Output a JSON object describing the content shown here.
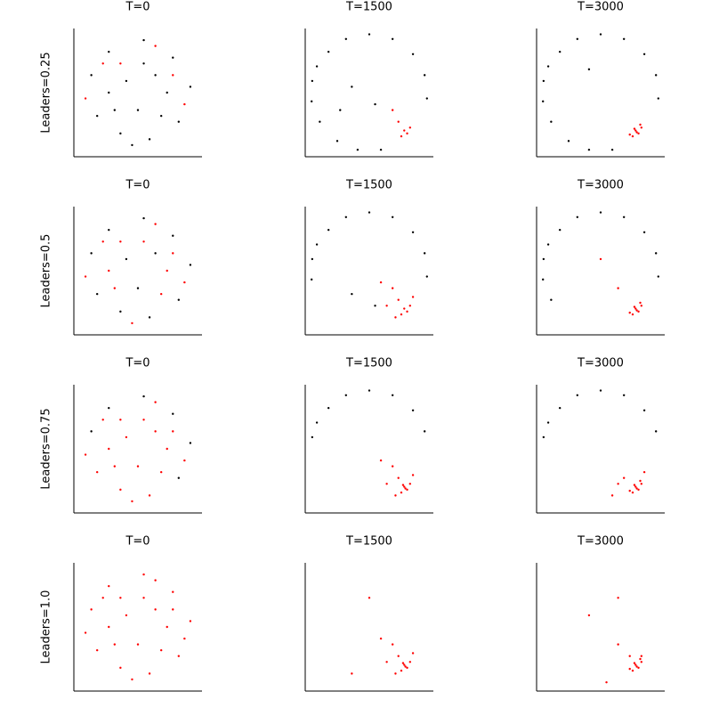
{
  "chart_data": [
    {
      "type": "scatter",
      "title": "T=0",
      "ylabel": "Leaders=0.25",
      "xlim": [
        -1.1,
        1.1
      ],
      "ylim": [
        -1.1,
        1.1
      ],
      "series": [
        {
          "color": "#000000",
          "x": [
            -0.8,
            -0.5,
            0.1,
            0.6,
            0.9,
            0.7,
            0.2,
            -0.3,
            -0.7,
            -0.2,
            0.3,
            0.0,
            -0.5,
            0.5,
            0.1,
            -0.4,
            0.4,
            -0.1
          ],
          "y": [
            0.3,
            0.7,
            0.9,
            0.6,
            0.1,
            -0.5,
            -0.8,
            -0.7,
            -0.4,
            0.2,
            0.3,
            -0.3,
            0.0,
            0.0,
            0.5,
            -0.3,
            -0.4,
            -0.9
          ]
        },
        {
          "color": "#ff0000",
          "x": [
            -0.9,
            0.8,
            -0.6,
            0.3,
            -0.3,
            0.6
          ],
          "y": [
            -0.1,
            -0.2,
            0.5,
            0.8,
            0.5,
            0.3
          ]
        }
      ]
    },
    {
      "type": "scatter",
      "title": "T=1500",
      "xlim": [
        -1.1,
        1.1
      ],
      "ylim": [
        -1.1,
        1.1
      ],
      "series": [
        {
          "color": "#000000",
          "x": [
            -0.98,
            -0.9,
            -0.7,
            -0.4,
            0.0,
            0.4,
            0.75,
            0.95,
            0.99,
            -0.99,
            -0.85,
            -0.55,
            -0.2,
            0.2,
            -0.3,
            0.1,
            -0.5
          ],
          "y": [
            0.2,
            0.45,
            0.7,
            0.92,
            1.0,
            0.92,
            0.66,
            0.3,
            -0.1,
            -0.15,
            -0.5,
            -0.83,
            -0.98,
            -0.98,
            0.1,
            -0.2,
            -0.3
          ]
        },
        {
          "color": "#ff0000",
          "x": [
            0.6,
            0.65,
            0.55,
            0.7,
            0.5,
            0.4
          ],
          "y": [
            -0.65,
            -0.7,
            -0.75,
            -0.6,
            -0.5,
            -0.3
          ]
        }
      ]
    },
    {
      "type": "scatter",
      "title": "T=3000",
      "xlim": [
        -1.1,
        1.1
      ],
      "ylim": [
        -1.1,
        1.1
      ],
      "series": [
        {
          "color": "#000000",
          "x": [
            -0.98,
            -0.9,
            -0.7,
            -0.4,
            0.0,
            0.4,
            0.75,
            0.95,
            0.99,
            -0.99,
            -0.85,
            -0.55,
            -0.2,
            0.2,
            -0.2
          ],
          "y": [
            0.2,
            0.45,
            0.7,
            0.92,
            1.0,
            0.92,
            0.66,
            0.3,
            -0.1,
            -0.15,
            -0.5,
            -0.83,
            -0.98,
            -0.98,
            0.4
          ]
        },
        {
          "color": "#ff0000",
          "x": [
            0.6,
            0.65,
            0.55,
            0.7,
            0.62,
            0.58,
            0.68,
            0.5
          ],
          "y": [
            -0.65,
            -0.7,
            -0.75,
            -0.6,
            -0.68,
            -0.62,
            -0.55,
            -0.72
          ]
        }
      ]
    },
    {
      "type": "scatter",
      "title": "T=0",
      "ylabel": "Leaders=0.5",
      "xlim": [
        -1.1,
        1.1
      ],
      "ylim": [
        -1.1,
        1.1
      ],
      "series": [
        {
          "color": "#000000",
          "x": [
            -0.8,
            -0.5,
            0.1,
            0.6,
            0.9,
            0.7,
            0.2,
            -0.3,
            -0.7,
            -0.2,
            0.3,
            0.0
          ],
          "y": [
            0.3,
            0.7,
            0.9,
            0.6,
            0.1,
            -0.5,
            -0.8,
            -0.7,
            -0.4,
            0.2,
            0.3,
            -0.3
          ]
        },
        {
          "color": "#ff0000",
          "x": [
            -0.5,
            0.5,
            0.1,
            -0.4,
            0.4,
            -0.1,
            -0.9,
            0.8,
            -0.6,
            0.3,
            -0.3,
            0.6
          ],
          "y": [
            0.0,
            0.0,
            0.5,
            -0.3,
            -0.4,
            -0.9,
            -0.1,
            -0.2,
            0.5,
            0.8,
            0.5,
            0.3
          ]
        }
      ]
    },
    {
      "type": "scatter",
      "title": "T=1500",
      "xlim": [
        -1.1,
        1.1
      ],
      "ylim": [
        -1.1,
        1.1
      ],
      "series": [
        {
          "color": "#000000",
          "x": [
            -0.98,
            -0.9,
            -0.7,
            -0.4,
            0.0,
            0.4,
            0.75,
            0.95,
            0.99,
            -0.99,
            -0.3,
            0.1
          ],
          "y": [
            0.2,
            0.45,
            0.7,
            0.92,
            1.0,
            0.92,
            0.66,
            0.3,
            -0.1,
            -0.15,
            -0.4,
            -0.6
          ]
        },
        {
          "color": "#ff0000",
          "x": [
            0.6,
            0.65,
            0.55,
            0.7,
            0.5,
            0.4,
            0.3,
            0.75,
            0.2,
            0.45
          ],
          "y": [
            -0.65,
            -0.7,
            -0.75,
            -0.6,
            -0.5,
            -0.3,
            -0.6,
            -0.45,
            -0.2,
            -0.8
          ]
        }
      ]
    },
    {
      "type": "scatter",
      "title": "T=3000",
      "xlim": [
        -1.1,
        1.1
      ],
      "ylim": [
        -1.1,
        1.1
      ],
      "series": [
        {
          "color": "#000000",
          "x": [
            -0.98,
            -0.9,
            -0.7,
            -0.4,
            0.0,
            0.4,
            0.75,
            0.95,
            0.99,
            -0.99,
            -0.85
          ],
          "y": [
            0.2,
            0.45,
            0.7,
            0.92,
            1.0,
            0.92,
            0.66,
            0.3,
            -0.1,
            -0.15,
            -0.5
          ]
        },
        {
          "color": "#ff0000",
          "x": [
            0.6,
            0.65,
            0.55,
            0.7,
            0.62,
            0.58,
            0.68,
            0.5,
            0.3,
            0.0
          ],
          "y": [
            -0.65,
            -0.7,
            -0.75,
            -0.6,
            -0.68,
            -0.62,
            -0.55,
            -0.72,
            -0.3,
            0.2
          ]
        }
      ]
    },
    {
      "type": "scatter",
      "title": "T=0",
      "ylabel": "Leaders=0.75",
      "xlim": [
        -1.1,
        1.1
      ],
      "ylim": [
        -1.1,
        1.1
      ],
      "series": [
        {
          "color": "#000000",
          "x": [
            -0.8,
            -0.5,
            0.1,
            0.6,
            0.9,
            0.7
          ],
          "y": [
            0.3,
            0.7,
            0.9,
            0.6,
            0.1,
            -0.5
          ]
        },
        {
          "color": "#ff0000",
          "x": [
            0.2,
            -0.3,
            -0.7,
            -0.2,
            0.3,
            0.0,
            -0.5,
            0.5,
            0.1,
            -0.4,
            0.4,
            -0.1,
            -0.9,
            0.8,
            -0.6,
            0.3,
            -0.3,
            0.6
          ],
          "y": [
            -0.8,
            -0.7,
            -0.4,
            0.2,
            0.3,
            -0.3,
            0.0,
            0.0,
            0.5,
            -0.3,
            -0.4,
            -0.9,
            -0.1,
            -0.2,
            0.5,
            0.8,
            0.5,
            0.3
          ]
        }
      ]
    },
    {
      "type": "scatter",
      "title": "T=1500",
      "xlim": [
        -1.1,
        1.1
      ],
      "ylim": [
        -1.1,
        1.1
      ],
      "series": [
        {
          "color": "#000000",
          "x": [
            -0.98,
            -0.9,
            -0.7,
            -0.4,
            0.0,
            0.4,
            0.75,
            0.95
          ],
          "y": [
            0.2,
            0.45,
            0.7,
            0.92,
            1.0,
            0.92,
            0.66,
            0.3
          ]
        },
        {
          "color": "#ff0000",
          "x": [
            0.6,
            0.65,
            0.55,
            0.7,
            0.5,
            0.4,
            0.3,
            0.75,
            0.2,
            0.45,
            0.62,
            0.58
          ],
          "y": [
            -0.65,
            -0.7,
            -0.75,
            -0.6,
            -0.5,
            -0.3,
            -0.6,
            -0.45,
            -0.2,
            -0.8,
            -0.68,
            -0.62
          ]
        }
      ]
    },
    {
      "type": "scatter",
      "title": "T=3000",
      "xlim": [
        -1.1,
        1.1
      ],
      "ylim": [
        -1.1,
        1.1
      ],
      "series": [
        {
          "color": "#000000",
          "x": [
            -0.98,
            -0.9,
            -0.7,
            -0.4,
            0.0,
            0.4,
            0.75,
            0.95
          ],
          "y": [
            0.2,
            0.45,
            0.7,
            0.92,
            1.0,
            0.92,
            0.66,
            0.3
          ]
        },
        {
          "color": "#ff0000",
          "x": [
            0.6,
            0.65,
            0.55,
            0.7,
            0.62,
            0.58,
            0.68,
            0.5,
            0.4,
            0.2,
            0.75,
            0.3
          ],
          "y": [
            -0.65,
            -0.7,
            -0.75,
            -0.6,
            -0.68,
            -0.62,
            -0.55,
            -0.72,
            -0.5,
            -0.8,
            -0.4,
            -0.6
          ]
        }
      ]
    },
    {
      "type": "scatter",
      "title": "T=0",
      "ylabel": "Leaders=1.0",
      "xlim": [
        -1.1,
        1.1
      ],
      "ylim": [
        -1.1,
        1.1
      ],
      "series": [
        {
          "color": "#ff0000",
          "x": [
            -0.8,
            -0.5,
            0.1,
            0.6,
            0.9,
            0.7,
            0.2,
            -0.3,
            -0.7,
            -0.2,
            0.3,
            0.0,
            -0.5,
            0.5,
            0.1,
            -0.4,
            0.4,
            -0.1,
            -0.9,
            0.8,
            -0.6,
            0.3,
            -0.3,
            0.6
          ],
          "y": [
            0.3,
            0.7,
            0.9,
            0.6,
            0.1,
            -0.5,
            -0.8,
            -0.7,
            -0.4,
            0.2,
            0.3,
            -0.3,
            0.0,
            0.0,
            0.5,
            -0.3,
            -0.4,
            -0.9,
            -0.1,
            -0.2,
            0.5,
            0.8,
            0.5,
            0.3
          ]
        }
      ]
    },
    {
      "type": "scatter",
      "title": "T=1500",
      "xlim": [
        -1.1,
        1.1
      ],
      "ylim": [
        -1.1,
        1.1
      ],
      "series": [
        {
          "color": "#ff0000",
          "x": [
            0.6,
            0.65,
            0.55,
            0.7,
            0.5,
            0.4,
            0.3,
            0.75,
            0.2,
            0.45,
            0.62,
            0.58,
            0.0,
            -0.3
          ],
          "y": [
            -0.65,
            -0.7,
            -0.75,
            -0.6,
            -0.5,
            -0.3,
            -0.6,
            -0.45,
            -0.2,
            -0.8,
            -0.68,
            -0.62,
            0.5,
            -0.8
          ]
        }
      ]
    },
    {
      "type": "scatter",
      "title": "T=3000",
      "xlim": [
        -1.1,
        1.1
      ],
      "ylim": [
        -1.1,
        1.1
      ],
      "series": [
        {
          "color": "#ff0000",
          "x": [
            0.6,
            0.65,
            0.55,
            0.7,
            0.62,
            0.58,
            0.68,
            0.5,
            0.3,
            0.5,
            0.7,
            -0.2,
            0.3,
            0.1
          ],
          "y": [
            -0.65,
            -0.7,
            -0.75,
            -0.6,
            -0.68,
            -0.62,
            -0.55,
            -0.72,
            -0.3,
            -0.5,
            -0.5,
            0.2,
            0.5,
            -0.95
          ]
        }
      ]
    }
  ]
}
